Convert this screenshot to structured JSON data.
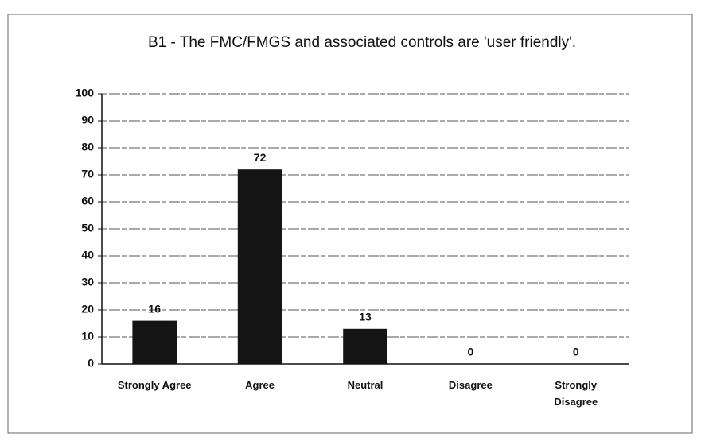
{
  "chart_data": {
    "type": "bar",
    "title": "B1 - The FMC/FMGS and associated controls are 'user friendly'.",
    "categories": [
      "Strongly Agree",
      "Agree",
      "Neutral",
      "Disagree",
      "Strongly Disagree"
    ],
    "values": [
      16,
      72,
      13,
      0,
      0
    ],
    "color": "#141414",
    "ylim": [
      0,
      100
    ],
    "yticks": [
      0,
      10,
      20,
      30,
      40,
      50,
      60,
      70,
      80,
      90,
      100
    ],
    "grid": true
  }
}
